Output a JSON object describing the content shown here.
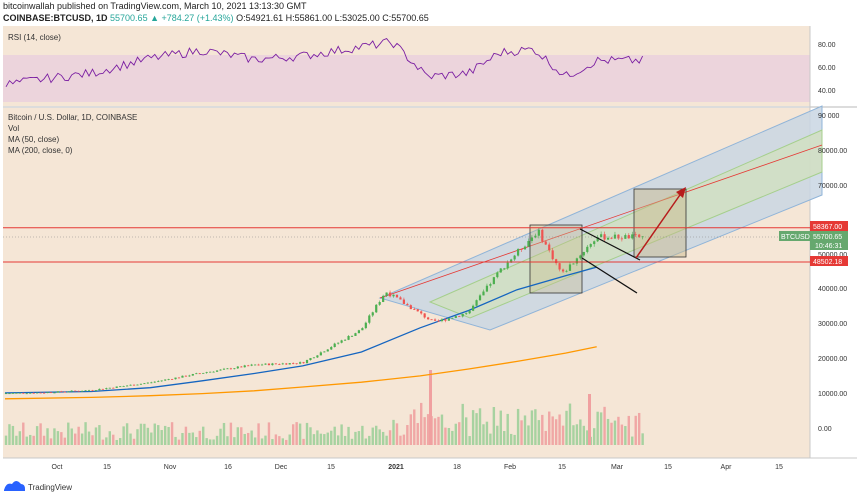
{
  "header": {
    "line1": "bitcoinwallah published on TradingView.com, March 10, 2021 13:13:30 GMT",
    "symbol": "COINBASE:BTCUSD, 1D",
    "price": "55700.65",
    "change": "▲ +784.27 (+1.43%)",
    "ohlc": "O:54921.61 H:55861.00 L:53025.00 C:55700.65"
  },
  "rsi_panel": {
    "title": "RSI (14, close)",
    "ticks": [
      "80.00",
      "60.00",
      "40.00"
    ]
  },
  "main_panel": {
    "title": "Bitcoin / U.S. Dollar, 1D, COINBASE",
    "legend": [
      "Vol",
      "MA (50, close)",
      "MA (200, close, 0)"
    ],
    "price_ticks": [
      "90 000",
      "80000.00",
      "70000.00",
      "50000.00",
      "40000.00",
      "30000.00",
      "20000.00",
      "10000.00",
      "0.00"
    ],
    "label_upper": "58367.00",
    "label_lower": "48502.18",
    "label_symbol": "BTCUSD",
    "label_price": "55700.65",
    "label_time": "10:46:31"
  },
  "x_axis": {
    "ticks": [
      "Oct",
      "15",
      "Nov",
      "16",
      "Dec",
      "15",
      "2021",
      "18",
      "Feb",
      "15",
      "Mar",
      "15",
      "Apr",
      "15"
    ]
  },
  "footer": {
    "brand": "TradingView"
  },
  "colors": {
    "bg": "#f5e6d6",
    "rsi_bg": "#ecd4dc",
    "rsi_line": "#7b1fa2",
    "ma50": "#1565c0",
    "ma200": "#ff9800",
    "level_line": "#e53935",
    "candle_up": "#4caf50",
    "candle_down": "#ef5350",
    "channel_blue": "#90b4d8",
    "channel_green": "#a5cf8c",
    "box_fill": "#c9b98a",
    "arrow": "#b71c1c",
    "price_tag": "#66a86e"
  },
  "chart_data": {
    "type": "candlestick",
    "title": "Bitcoin / U.S. Dollar, 1D, COINBASE",
    "xlabel": "",
    "ylabel": "",
    "ylim": [
      0,
      90000
    ],
    "grid": false,
    "legend_position": "top-left",
    "series": [
      {
        "name": "MA (50, close)",
        "x": [
          "2020-09-20",
          "2020-10-15",
          "2020-11-01",
          "2020-11-16",
          "2020-12-01",
          "2020-12-15",
          "2021-01-01",
          "2021-01-18",
          "2021-02-01",
          "2021-02-15",
          "2021-03-01",
          "2021-03-10"
        ],
        "values": [
          10700,
          11100,
          12200,
          14200,
          16300,
          18500,
          22500,
          29500,
          34500,
          40500,
          44500,
          47000
        ]
      },
      {
        "name": "MA (200, close, 0)",
        "x": [
          "2020-09-20",
          "2020-10-15",
          "2020-11-01",
          "2020-11-16",
          "2020-12-01",
          "2020-12-15",
          "2021-01-01",
          "2021-01-18",
          "2021-02-01",
          "2021-02-15",
          "2021-03-01",
          "2021-03-10"
        ],
        "values": [
          9000,
          9400,
          9900,
          10500,
          11300,
          12400,
          13800,
          15600,
          17600,
          19800,
          22200,
          24000
        ]
      },
      {
        "name": "RSI (14, close)",
        "x": [
          "2020-09-20",
          "2020-10-01",
          "2020-10-15",
          "2020-11-01",
          "2020-11-16",
          "2020-12-01",
          "2020-12-15",
          "2021-01-01",
          "2021-01-10",
          "2021-01-20",
          "2021-02-01",
          "2021-02-10",
          "2021-02-20",
          "2021-03-01",
          "2021-03-10"
        ],
        "values": [
          45,
          50,
          55,
          68,
          75,
          67,
          70,
          78,
          82,
          52,
          55,
          73,
          76,
          52,
          66
        ]
      }
    ],
    "price_path": {
      "x": [
        "2020-09-20",
        "2020-10-01",
        "2020-10-15",
        "2020-11-01",
        "2020-11-16",
        "2020-12-01",
        "2020-12-15",
        "2021-01-01",
        "2021-01-08",
        "2021-01-22",
        "2021-02-01",
        "2021-02-10",
        "2021-02-21",
        "2021-02-28",
        "2021-03-10"
      ],
      "close": [
        10600,
        10800,
        11500,
        13700,
        16500,
        18800,
        19400,
        29000,
        40000,
        31000,
        34000,
        46000,
        57500,
        45000,
        55700
      ]
    },
    "levels": [
      58367.0,
      48502.18
    ]
  }
}
